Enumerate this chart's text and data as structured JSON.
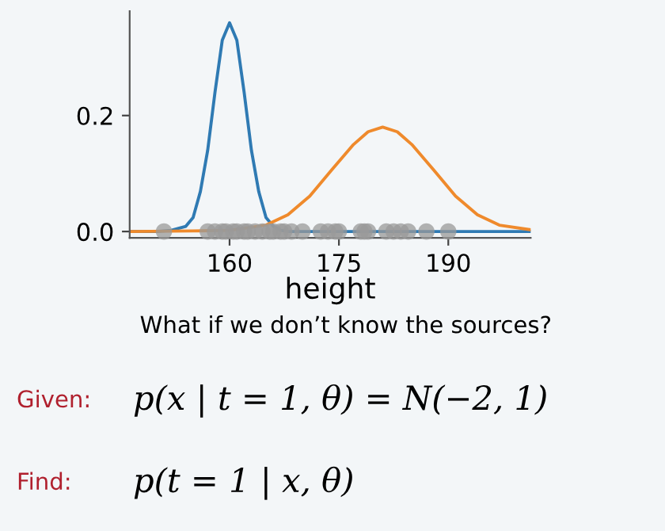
{
  "chart_data": {
    "type": "line",
    "xlabel": "height",
    "xlim": [
      146.3,
      201.3
    ],
    "ylim": [
      -0.011,
      0.38
    ],
    "xticks": [
      160,
      175,
      190
    ],
    "yticks": [
      {
        "value": 0,
        "label": "0.0"
      },
      0.2
    ],
    "grid": false,
    "legend": false,
    "series": [
      {
        "color": "#2f7ab3",
        "marker": "none",
        "x": [
          146.3,
          150,
          152,
          154,
          155,
          156,
          157,
          158,
          159,
          160,
          161,
          162,
          163,
          164,
          165,
          166,
          167,
          168,
          170,
          201.3
        ],
        "values": [
          0,
          0,
          0.002,
          0.009,
          0.024,
          0.069,
          0.14,
          0.24,
          0.33,
          0.36,
          0.33,
          0.24,
          0.14,
          0.069,
          0.024,
          0.009,
          0.002,
          0,
          0,
          0
        ]
      },
      {
        "color": "#ef8a2c",
        "marker": "none",
        "x": [
          146.3,
          155,
          160,
          165,
          168,
          171,
          174,
          177,
          179,
          181,
          183,
          185,
          188,
          191,
          194,
          197,
          201.3
        ],
        "values": [
          0,
          0.001,
          0.002,
          0.011,
          0.029,
          0.061,
          0.106,
          0.15,
          0.172,
          0.18,
          0.172,
          0.15,
          0.106,
          0.061,
          0.029,
          0.011,
          0.003
        ]
      },
      {
        "type": "scatter",
        "color": "#999999",
        "marker": "circle",
        "x": [
          151,
          157,
          158,
          159,
          159.5,
          160.5,
          161,
          162,
          162.5,
          163.5,
          164.5,
          165.5,
          166,
          167,
          167.5,
          168.5,
          170,
          172.5,
          173.5,
          174.5,
          175,
          178,
          178.5,
          179,
          181.5,
          182.5,
          183.5,
          184.5,
          187,
          190
        ],
        "values": [
          0,
          0,
          0,
          0,
          0,
          0,
          0,
          0,
          0,
          0,
          0,
          0,
          0,
          0,
          0,
          0,
          0,
          0,
          0,
          0,
          0,
          0,
          0,
          0,
          0,
          0,
          0,
          0,
          0,
          0
        ]
      }
    ],
    "annotations": [
      "What if we don’t know the sources?",
      "Given:",
      "p(x | t = 1, θ) = N(−2, 1)",
      "Find:",
      "p(t = 1 | x, θ)"
    ]
  }
}
